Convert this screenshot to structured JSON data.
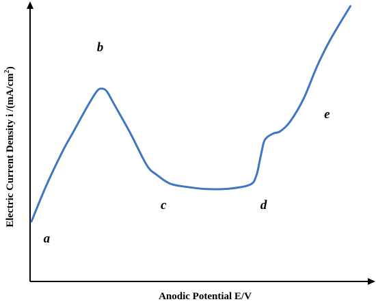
{
  "chart_data": {
    "type": "line",
    "title": "",
    "xlabel": "Anodic Potential E/V",
    "ylabel": {
      "main": "Electric Current Density i /(mA/cm",
      "superscript": "2",
      "end": ")"
    },
    "xlim": [
      0,
      100
    ],
    "ylim": [
      0,
      100
    ],
    "grid": false,
    "legend": "none",
    "ticks": false,
    "series": [
      {
        "color": "#3E76C2",
        "x": [
          0.4,
          5,
          10,
          13,
          17,
          20,
          21.5,
          23,
          25,
          30,
          35,
          38,
          42,
          47,
          53,
          60,
          66,
          67.8,
          69,
          70,
          71,
          73,
          75,
          78,
          82,
          86,
          90,
          96
        ],
        "y": [
          22.4,
          36.2,
          49.2,
          55.9,
          65,
          71,
          72,
          71,
          66.6,
          55.5,
          43.4,
          39.8,
          36.5,
          35.3,
          34.5,
          34.7,
          36.2,
          39.5,
          46,
          51.7,
          53.8,
          55.3,
          56.1,
          59.8,
          68.3,
          80.3,
          90.3,
          102.8
        ]
      }
    ],
    "annotations": [
      {
        "text": "a",
        "x": 5,
        "y": 14.5
      },
      {
        "text": "b",
        "x": 21,
        "y": 86
      },
      {
        "text": "c",
        "x": 40,
        "y": 27
      },
      {
        "text": "d",
        "x": 70,
        "y": 27
      },
      {
        "text": "e",
        "x": 89,
        "y": 61
      }
    ]
  }
}
